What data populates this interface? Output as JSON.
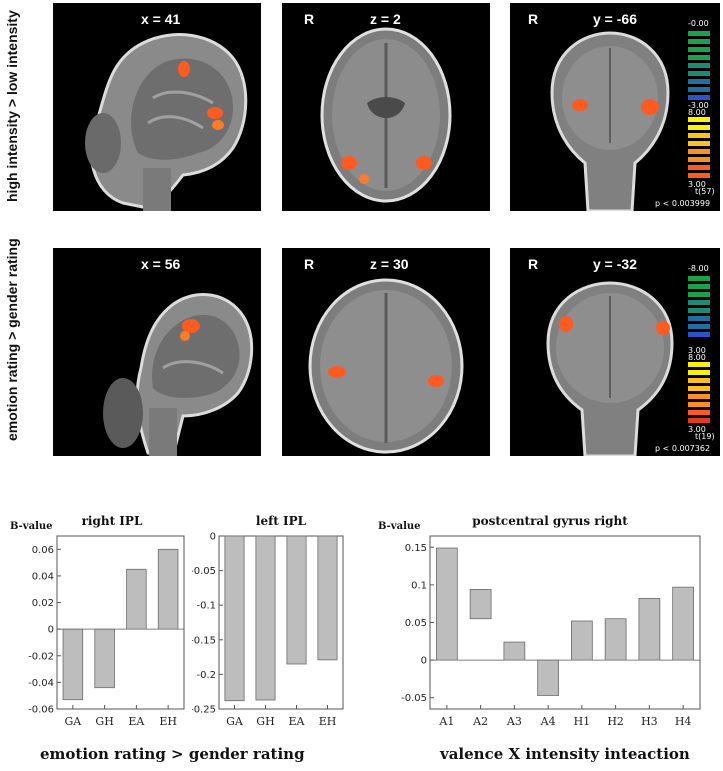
{
  "figure": {
    "row1_label": "high intensity > low intensity",
    "row2_label": "emotion rating > gender rating",
    "rows": [
      {
        "panels": [
          {
            "R": "",
            "coord": "x = 41",
            "view": "sagittal"
          },
          {
            "R": "R",
            "coord": "z = 2",
            "view": "axial"
          },
          {
            "R": "R",
            "coord": "y = -66",
            "view": "coronal"
          }
        ],
        "scale": {
          "top": "-0.00",
          "mid1": "-3.00",
          "mid2": "8.00",
          "bottom": "3.00",
          "stat": "t(57)",
          "p": "p < 0.003999"
        }
      },
      {
        "panels": [
          {
            "R": "",
            "coord": "x = 56",
            "view": "sagittal"
          },
          {
            "R": "R",
            "coord": "z = 30",
            "view": "axial"
          },
          {
            "R": "R",
            "coord": "y = -32",
            "view": "coronal"
          }
        ],
        "scale": {
          "top": "-8.00",
          "mid1": "3.00",
          "mid2": "8.00",
          "bottom": "3.00",
          "stat": "t(19)",
          "p": "p < 0.007362"
        }
      }
    ],
    "colors": {
      "bar_fill": "#bdbdbd",
      "activation": "#ff5a1f",
      "scale_cold": [
        "#1aa14b",
        "#1e8a73",
        "#1f6fa3",
        "#2a55c8"
      ],
      "scale_hot": [
        "#fff200",
        "#ffc21a",
        "#ff8f1f",
        "#ff5a1f",
        "#e53a1a"
      ]
    },
    "caption_left": "emotion rating > gender rating",
    "caption_right": "valence X intensity inteaction"
  },
  "chart_data": [
    {
      "type": "bar",
      "title": "right IPL",
      "ylabel": "B-value",
      "categories": [
        "GA",
        "GH",
        "EA",
        "EH"
      ],
      "values": [
        -0.053,
        -0.044,
        0.045,
        0.06
      ],
      "ylim": [
        -0.06,
        0.07
      ],
      "yticks": [
        0.06,
        0.04,
        0.02,
        0,
        -0.02,
        -0.04,
        -0.06
      ],
      "ytick_labels": [
        "0.06",
        "0.04",
        "0.02",
        "0",
        "-0.02",
        "-0.04",
        "-0.06"
      ]
    },
    {
      "type": "bar",
      "title": "left IPL",
      "ylabel": "",
      "categories": [
        "GA",
        "GH",
        "EA",
        "EH"
      ],
      "values": [
        -0.238,
        -0.237,
        -0.185,
        -0.179
      ],
      "ylim": [
        -0.25,
        0
      ],
      "yticks": [
        0,
        -0.05,
        -0.1,
        -0.15,
        -0.2,
        -0.25
      ],
      "ytick_labels": [
        "0",
        "-0.05",
        "-0.1",
        "-0.15",
        "-0.2",
        "-0.25"
      ]
    },
    {
      "type": "bar",
      "title": "postcentral gyrus right",
      "ylabel": "B-value",
      "categories": [
        "A1",
        "A2",
        "A3",
        "A4",
        "H1",
        "H2",
        "H3",
        "H4"
      ],
      "values": [
        [
          0,
          0.149
        ],
        [
          0.055,
          0.094
        ],
        [
          0,
          0.024
        ],
        [
          -0.047,
          0
        ],
        [
          0,
          0.052
        ],
        [
          0,
          0.055
        ],
        [
          0,
          0.082
        ],
        [
          0,
          0.097
        ]
      ],
      "ylim": [
        -0.065,
        0.165
      ],
      "yticks": [
        0.15,
        0.1,
        0.05,
        0,
        -0.05
      ],
      "ytick_labels": [
        "0.15",
        "0.1",
        "0.05",
        "0",
        "-0.05"
      ]
    }
  ]
}
